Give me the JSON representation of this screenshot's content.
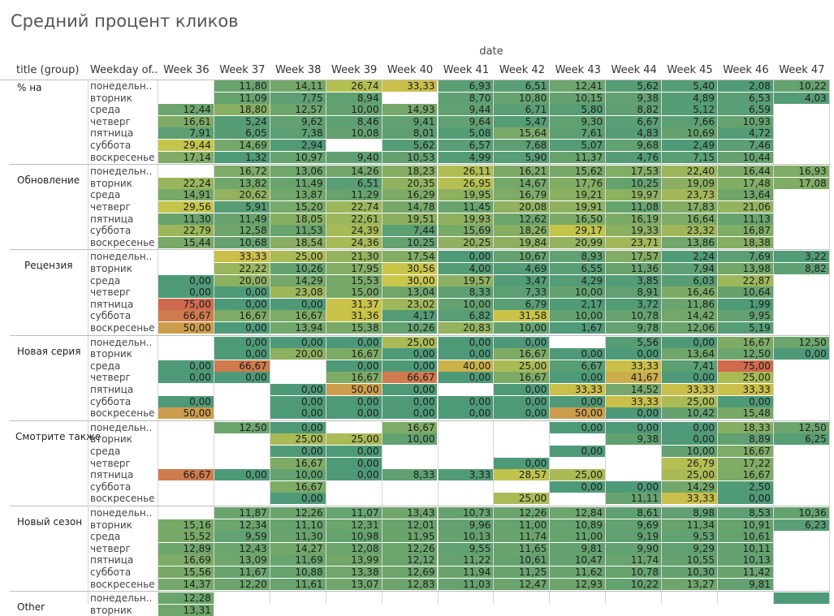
{
  "title": "Средний процент кликов",
  "chart_data": {
    "type": "heatmap",
    "title": "Средний процент кликов",
    "column_axis_label": "date",
    "row_headers": [
      "title (group)",
      "Weekday of.."
    ],
    "columns": [
      "Week 36",
      "Week 37",
      "Week 38",
      "Week 39",
      "Week 40",
      "Week 41",
      "Week 42",
      "Week 43",
      "Week 44",
      "Week 45",
      "Week 46",
      "Week 47"
    ],
    "weekdays": [
      "понедельн..",
      "вторник",
      "среда",
      "четверг",
      "пятница",
      "суббота",
      "воскресенье"
    ],
    "color_scale": {
      "low": "#4e9a78",
      "mid": "#c9c64a",
      "high": "#d06a4e"
    },
    "groups": [
      {
        "name": "% на",
        "rows": [
          {
            "day": "понедельн..",
            "values": [
              null,
              "11,80",
              "14,11",
              "26,74",
              "33,33",
              "6,93",
              "6,51",
              "12,41",
              "5,62",
              "5,40",
              "2,08",
              "10,22"
            ]
          },
          {
            "day": "вторник",
            "values": [
              null,
              "11,09",
              "7,75",
              "8,94",
              null,
              "8,70",
              "10,80",
              "10,15",
              "9,38",
              "4,89",
              "6,53",
              "4,03"
            ]
          },
          {
            "day": "среда",
            "values": [
              "12,44",
              "18,80",
              "12,57",
              "10,00",
              "14,93",
              "9,44",
              "6,71",
              "5,80",
              "8,82",
              "5,12",
              "6,59",
              null
            ]
          },
          {
            "day": "четверг",
            "values": [
              "16,61",
              "5,24",
              "9,62",
              "8,46",
              "9,41",
              "9,64",
              "5,47",
              "9,30",
              "6,67",
              "7,66",
              "10,93",
              null
            ]
          },
          {
            "day": "пятница",
            "values": [
              "7,91",
              "6,05",
              "7,38",
              "10,08",
              "8,01",
              "5,08",
              "15,64",
              "7,61",
              "4,83",
              "10,69",
              "4,72",
              null
            ]
          },
          {
            "day": "суббота",
            "values": [
              "29,44",
              "14,69",
              "2,94",
              null,
              "5,62",
              "6,57",
              "7,68",
              "5,07",
              "9,68",
              "2,49",
              "7,46",
              null
            ]
          },
          {
            "day": "воскресенье",
            "values": [
              "17,14",
              "1,32",
              "10,97",
              "9,40",
              "10,53",
              "4,99",
              "5,90",
              "11,37",
              "4,76",
              "7,15",
              "10,44",
              null
            ]
          }
        ]
      },
      {
        "name": "Обновление",
        "rows": [
          {
            "day": "понедельн..",
            "values": [
              null,
              "16,72",
              "13,06",
              "14,26",
              "18,23",
              "26,11",
              "16,21",
              "15,62",
              "17,53",
              "22,40",
              "16,44",
              "16,93"
            ]
          },
          {
            "day": "вторник",
            "values": [
              "22,24",
              "13,82",
              "11,49",
              "6,51",
              "20,35",
              "26,95",
              "14,67",
              "17,76",
              "10,25",
              "19,09",
              "17,48",
              "17,08"
            ]
          },
          {
            "day": "среда",
            "values": [
              "14,91",
              "20,62",
              "13,87",
              "11,29",
              "16,29",
              "19,95",
              "16,79",
              "19,21",
              "19,97",
              "23,73",
              "13,64",
              null
            ]
          },
          {
            "day": "четверг",
            "values": [
              "29,56",
              "5,91",
              "15,20",
              "22,74",
              "14,78",
              "11,45",
              "20,08",
              "19,91",
              "11,08",
              "17,83",
              "21,06",
              null
            ]
          },
          {
            "day": "пятница",
            "values": [
              "11,30",
              "11,49",
              "18,05",
              "22,61",
              "19,51",
              "19,93",
              "12,62",
              "16,50",
              "16,19",
              "16,64",
              "11,13",
              null
            ]
          },
          {
            "day": "суббота",
            "values": [
              "22,79",
              "12,58",
              "11,53",
              "24,39",
              "7,44",
              "15,69",
              "18,26",
              "29,17",
              "19,33",
              "23,32",
              "16,87",
              null
            ]
          },
          {
            "day": "воскресенье",
            "values": [
              "15,44",
              "10,68",
              "18,54",
              "24,36",
              "10,25",
              "20,25",
              "19,84",
              "20,99",
              "23,71",
              "13,86",
              "18,38",
              null
            ]
          }
        ]
      },
      {
        "name": "Рецензия",
        "rows": [
          {
            "day": "понедельн..",
            "values": [
              null,
              "33,33",
              "25,00",
              "21,30",
              "17,54",
              "0,00",
              "10,67",
              "8,93",
              "17,57",
              "2,24",
              "7,69",
              "3,22"
            ]
          },
          {
            "day": "вторник",
            "values": [
              null,
              "22,22",
              "10,26",
              "17,95",
              "30,56",
              "4,00",
              "4,69",
              "6,55",
              "11,36",
              "7,94",
              "13,98",
              "8,82"
            ]
          },
          {
            "day": "среда",
            "values": [
              "0,00",
              "20,00",
              "14,29",
              "15,53",
              "30,00",
              "19,57",
              "3,47",
              "4,29",
              "3,85",
              "6,03",
              "22,87",
              null
            ]
          },
          {
            "day": "четверг",
            "values": [
              "0,00",
              "0,00",
              "23,08",
              "15,00",
              "13,04",
              "8,33",
              "7,33",
              "10,00",
              "8,91",
              "16,46",
              "10,64",
              null
            ]
          },
          {
            "day": "пятница",
            "values": [
              "75,00",
              "0,00",
              "0,00",
              "31,37",
              "23,02",
              "10,00",
              "6,79",
              "2,17",
              "3,72",
              "11,86",
              "1,99",
              null
            ]
          },
          {
            "day": "суббота",
            "values": [
              "66,67",
              "16,67",
              "16,67",
              "31,36",
              "4,17",
              "6,82",
              "31,58",
              "10,00",
              "10,78",
              "14,42",
              "9,95",
              null
            ]
          },
          {
            "day": "воскресенье",
            "values": [
              "50,00",
              "0,00",
              "13,94",
              "15,38",
              "10,26",
              "20,83",
              "10,00",
              "1,67",
              "9,78",
              "12,06",
              "5,19",
              null
            ]
          }
        ]
      },
      {
        "name": "Новая серия",
        "rows": [
          {
            "day": "понедельн..",
            "values": [
              null,
              "0,00",
              "0,00",
              "0,00",
              "25,00",
              "0,00",
              "0,00",
              null,
              "5,56",
              "0,00",
              "16,67",
              "12,50"
            ]
          },
          {
            "day": "вторник",
            "values": [
              null,
              "0,00",
              "20,00",
              "16,67",
              "0,00",
              "0,00",
              "16,67",
              "0,00",
              "0,00",
              "13,64",
              "12,50",
              "0,00"
            ]
          },
          {
            "day": "среда",
            "values": [
              "0,00",
              "66,67",
              null,
              "0,00",
              "0,00",
              "40,00",
              "25,00",
              "6,67",
              "33,33",
              "7,41",
              "75,00",
              null
            ]
          },
          {
            "day": "четверг",
            "values": [
              "0,00",
              "0,00",
              null,
              "16,67",
              "66,67",
              "0,00",
              "16,67",
              "0,00",
              "41,67",
              "0,00",
              "25,00",
              null
            ]
          },
          {
            "day": "пятница",
            "values": [
              null,
              null,
              "0,00",
              "50,00",
              "0,00",
              null,
              "0,00",
              "33,33",
              "14,52",
              "33,33",
              "33,33",
              null
            ]
          },
          {
            "day": "суббота",
            "values": [
              "0,00",
              null,
              "0,00",
              "0,00",
              "0,00",
              "0,00",
              "0,00",
              "0,00",
              "33,33",
              "25,00",
              "0,00",
              null
            ]
          },
          {
            "day": "воскресенье",
            "values": [
              "50,00",
              null,
              "0,00",
              "0,00",
              "0,00",
              "0,00",
              "0,00",
              "50,00",
              "0,00",
              "10,42",
              "15,48",
              null
            ]
          }
        ]
      },
      {
        "name": "Смотрите также",
        "rows": [
          {
            "day": "понедельн..",
            "values": [
              null,
              "12,50",
              "0,00",
              null,
              "16,67",
              null,
              null,
              "0,00",
              "0,00",
              "0,00",
              "18,33",
              "12,50"
            ]
          },
          {
            "day": "вторник",
            "values": [
              null,
              null,
              "25,00",
              "25,00",
              "10,00",
              null,
              null,
              null,
              "9,38",
              "0,00",
              "8,89",
              "6,25"
            ]
          },
          {
            "day": "среда",
            "values": [
              null,
              null,
              "0,00",
              "0,00",
              null,
              null,
              null,
              "0,00",
              null,
              "10,00",
              "16,67",
              null
            ]
          },
          {
            "day": "четверг",
            "values": [
              null,
              null,
              "16,67",
              "0,00",
              null,
              null,
              "0,00",
              null,
              null,
              "26,79",
              "17,22",
              null
            ]
          },
          {
            "day": "пятница",
            "values": [
              "66,67",
              "0,00",
              "10,00",
              "0,00",
              "8,33",
              "3,33",
              "28,57",
              "25,00",
              null,
              "25,00",
              "16,67",
              null
            ]
          },
          {
            "day": "суббота",
            "values": [
              null,
              null,
              "16,67",
              null,
              null,
              null,
              null,
              "0,00",
              "0,00",
              "14,29",
              "2,50",
              null
            ]
          },
          {
            "day": "воскресенье",
            "values": [
              null,
              null,
              "0,00",
              null,
              null,
              null,
              "25,00",
              null,
              "11,11",
              "33,33",
              "0,00",
              null
            ]
          }
        ]
      },
      {
        "name": "Новый сезон",
        "rows": [
          {
            "day": "понедельн..",
            "values": [
              null,
              "11,87",
              "12,26",
              "11,07",
              "13,43",
              "10,73",
              "12,26",
              "12,84",
              "8,61",
              "8,98",
              "8,53",
              "10,36"
            ]
          },
          {
            "day": "вторник",
            "values": [
              "15,16",
              "12,34",
              "11,10",
              "12,31",
              "12,01",
              "9,96",
              "11,00",
              "10,89",
              "9,69",
              "11,34",
              "10,91",
              "6,23"
            ]
          },
          {
            "day": "среда",
            "values": [
              "15,52",
              "9,59",
              "11,30",
              "10,98",
              "11,95",
              "10,13",
              "11,74",
              "11,00",
              "9,19",
              "9,53",
              "10,61",
              null
            ]
          },
          {
            "day": "четверг",
            "values": [
              "12,89",
              "12,43",
              "14,27",
              "12,08",
              "12,26",
              "9,55",
              "11,65",
              "9,81",
              "9,90",
              "9,29",
              "10,11",
              null
            ]
          },
          {
            "day": "пятница",
            "values": [
              "16,69",
              "13,09",
              "11,69",
              "13,99",
              "12,12",
              "11,22",
              "10,61",
              "10,47",
              "11,74",
              "10,55",
              "10,13",
              null
            ]
          },
          {
            "day": "суббота",
            "values": [
              "15,56",
              "11,67",
              "10,88",
              "13,38",
              "12,69",
              "11,94",
              "11,25",
              "11,62",
              "10,78",
              "10,30",
              "11,42",
              null
            ]
          },
          {
            "day": "воскресенье",
            "values": [
              "14,37",
              "12,20",
              "11,61",
              "13,07",
              "12,83",
              "11,03",
              "12,47",
              "12,93",
              "10,22",
              "13,27",
              "9,81",
              null
            ]
          }
        ]
      },
      {
        "name": "Other",
        "rows": [
          {
            "day": "понедельн..",
            "values": [
              "12,28",
              null,
              null,
              null,
              null,
              null,
              null,
              null,
              null,
              null,
              null,
              ""
            ]
          },
          {
            "day": "вторник",
            "values": [
              "13,31",
              null,
              null,
              null,
              null,
              null,
              null,
              null,
              null,
              null,
              null,
              null
            ]
          }
        ]
      }
    ]
  }
}
